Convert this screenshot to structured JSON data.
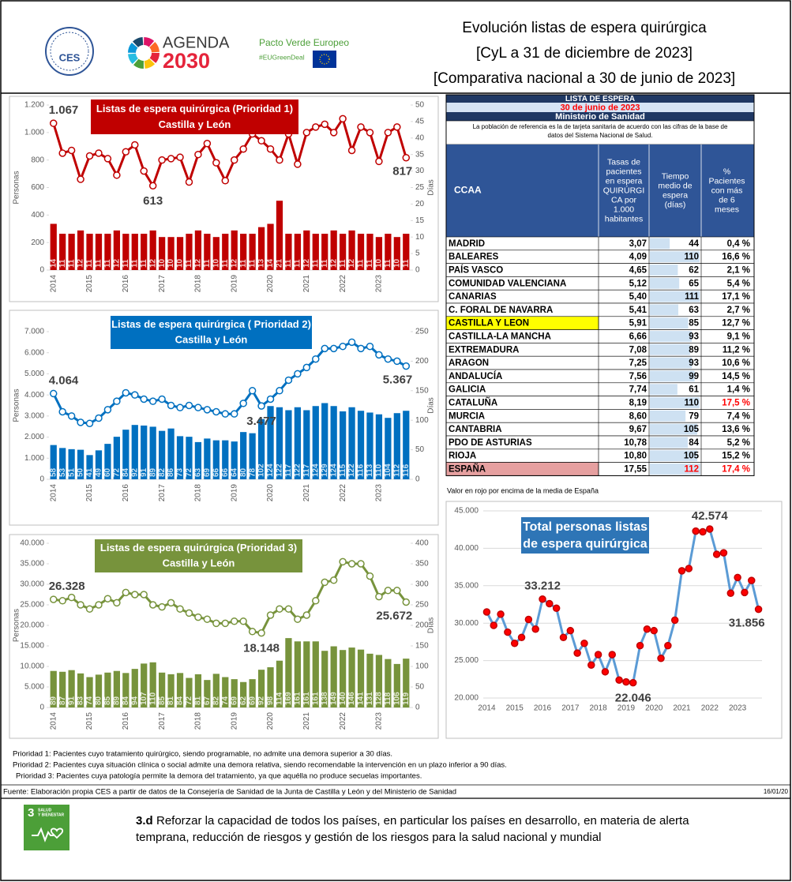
{
  "header": {
    "title": [
      "Evolución listas de espera quirúrgica",
      "[CyL a 31 de diciembre de 2023]",
      "[Comparativa nacional a 30 de junio de 2023]"
    ],
    "ces_logo": "CES",
    "agenda": "AGENDA",
    "agenda_year": "2030",
    "pacto": "Pacto Verde Europeo",
    "hashtag": "#EUGreenDeal"
  },
  "chart_data": [
    {
      "type": "combo",
      "title": [
        "Listas de espera quirúrgica (Prioridad 1)",
        "Castilla y León"
      ],
      "title_bg": "#c00000",
      "ylabel": "Personas",
      "y2label": "Días",
      "categories": [
        "2014",
        null,
        null,
        null,
        "2015",
        null,
        null,
        null,
        "2016",
        null,
        null,
        null,
        "2017",
        null,
        null,
        null,
        "2018",
        null,
        null,
        null,
        "2019",
        null,
        null,
        null,
        "2020",
        null,
        null,
        null,
        "2021",
        null,
        null,
        null,
        "2022",
        null,
        null,
        null,
        "2023",
        null,
        null,
        null
      ],
      "ylim": [
        0,
        1200
      ],
      "yticks": [
        0,
        200,
        400,
        600,
        800,
        {
          "value": 1000,
          "label": "1.000"
        },
        {
          "value": 1200,
          "label": "1.200"
        }
      ],
      "y2lim": [
        0,
        50
      ],
      "y2ticks": [
        0,
        5,
        10,
        15,
        20,
        25,
        30,
        35,
        40,
        45,
        50
      ],
      "grid": false,
      "series": [
        {
          "type": "bar",
          "axis": "y2",
          "color": "#c00000",
          "values": [
            14,
            11,
            11,
            12,
            11,
            11,
            11,
            12,
            11,
            11,
            11,
            12,
            10,
            10,
            10,
            11,
            12,
            11,
            10,
            11,
            12,
            11,
            11,
            13,
            14,
            21,
            11,
            11,
            12,
            11,
            11,
            12,
            11,
            12,
            11,
            11,
            10,
            11,
            10,
            11
          ]
        },
        {
          "type": "line",
          "color": "#c00000",
          "marker_fill": "#ffffff",
          "values": [
            1067,
            850,
            870,
            660,
            830,
            850,
            810,
            690,
            860,
            910,
            720,
            613,
            800,
            810,
            820,
            640,
            840,
            920,
            780,
            650,
            800,
            880,
            990,
            940,
            880,
            800,
            990,
            770,
            1000,
            1040,
            1060,
            1000,
            1100,
            870,
            1040,
            1000,
            790,
            1000,
            1040,
            817
          ],
          "value_labels": [
            "1.067",
            null,
            null,
            null,
            null,
            null,
            null,
            null,
            null,
            null,
            null,
            "613",
            null,
            null,
            null,
            null,
            null,
            null,
            null,
            null,
            null,
            null,
            null,
            null,
            null,
            null,
            null,
            null,
            null,
            null,
            null,
            null,
            null,
            null,
            null,
            null,
            null,
            null,
            null,
            "817"
          ]
        }
      ]
    },
    {
      "type": "combo",
      "title": [
        "Listas de espera quirúrgica ( Prioridad 2)",
        "Castilla y León"
      ],
      "title_bg": "#0070c0",
      "ylabel": "Personas",
      "y2label": "Días",
      "categories": [
        "2014",
        null,
        null,
        null,
        "2015",
        null,
        null,
        null,
        "2016",
        null,
        null,
        null,
        "2017",
        null,
        null,
        null,
        "2018",
        null,
        null,
        null,
        "2019",
        null,
        null,
        null,
        "2020",
        null,
        null,
        null,
        "2021",
        null,
        null,
        null,
        "2022",
        null,
        null,
        null,
        "2023",
        null,
        null,
        null
      ],
      "ylim": [
        0,
        7000
      ],
      "yticks": [
        0,
        {
          "value": 1000,
          "label": "1.000"
        },
        {
          "value": 2000,
          "label": "2.000"
        },
        {
          "value": 3000,
          "label": "3.000"
        },
        {
          "value": 4000,
          "label": "4.000"
        },
        {
          "value": 5000,
          "label": "5.000"
        },
        {
          "value": 6000,
          "label": "6.000"
        },
        {
          "value": 7000,
          "label": "7.000"
        }
      ],
      "y2lim": [
        0,
        250
      ],
      "y2ticks": [
        0,
        50,
        100,
        150,
        200,
        250
      ],
      "grid": false,
      "series": [
        {
          "type": "bar",
          "axis": "y2",
          "color": "#0070c0",
          "values": [
            58,
            53,
            51,
            50,
            41,
            49,
            60,
            72,
            84,
            92,
            91,
            89,
            82,
            86,
            73,
            72,
            63,
            69,
            66,
            66,
            64,
            80,
            78,
            102,
            124,
            122,
            117,
            122,
            117,
            124,
            129,
            124,
            115,
            122,
            116,
            113,
            110,
            104,
            112,
            116
          ]
        },
        {
          "type": "line",
          "color": "#0070c0",
          "marker_fill": "#ffffff",
          "values": [
            4064,
            3200,
            3000,
            2700,
            2650,
            2900,
            3300,
            3700,
            4100,
            4000,
            3800,
            3700,
            3800,
            3500,
            3400,
            3500,
            3400,
            3300,
            3200,
            3100,
            3100,
            3600,
            4200,
            3477,
            3800,
            4200,
            4700,
            5000,
            5300,
            5700,
            6200,
            6200,
            6300,
            6500,
            6200,
            6300,
            5900,
            5700,
            5600,
            5367
          ],
          "value_labels": [
            "4.064",
            null,
            null,
            null,
            null,
            null,
            null,
            null,
            null,
            null,
            null,
            null,
            null,
            null,
            null,
            null,
            null,
            null,
            null,
            null,
            null,
            null,
            null,
            "3.477",
            null,
            null,
            null,
            null,
            null,
            null,
            null,
            null,
            null,
            null,
            null,
            null,
            null,
            null,
            null,
            "5.367"
          ]
        }
      ]
    },
    {
      "type": "combo",
      "title": [
        "Listas de espera quirúrgica (Prioridad  3)",
        "Castilla y León"
      ],
      "title_bg": "#77933c",
      "ylabel": "Personas",
      "y2label": "Días",
      "categories": [
        "2014",
        null,
        null,
        null,
        "2015",
        null,
        null,
        null,
        "2016",
        null,
        null,
        null,
        "2017",
        null,
        null,
        null,
        "2018",
        null,
        null,
        null,
        "2019",
        null,
        null,
        null,
        "2020",
        null,
        null,
        null,
        "2021",
        null,
        null,
        null,
        "2022",
        null,
        null,
        null,
        "2023",
        null,
        null,
        null
      ],
      "ylim": [
        0,
        40000
      ],
      "yticks": [
        0,
        {
          "value": 5000,
          "label": "5.000"
        },
        {
          "value": 10000,
          "label": "10.000"
        },
        {
          "value": 15000,
          "label": "15.000"
        },
        {
          "value": 20000,
          "label": "20.000"
        },
        {
          "value": 25000,
          "label": "25.000"
        },
        {
          "value": 30000,
          "label": "30.000"
        },
        {
          "value": 35000,
          "label": "35.000"
        },
        {
          "value": 40000,
          "label": "40.000"
        }
      ],
      "y2lim": [
        0,
        400
      ],
      "y2ticks": [
        0,
        50,
        100,
        150,
        200,
        250,
        300,
        350,
        400
      ],
      "grid": false,
      "series": [
        {
          "type": "bar",
          "axis": "y2",
          "color": "#77933c",
          "values": [
            89,
            87,
            91,
            83,
            74,
            80,
            85,
            89,
            84,
            94,
            107,
            110,
            85,
            81,
            84,
            72,
            81,
            67,
            82,
            74,
            69,
            62,
            69,
            92,
            98,
            114,
            169,
            161,
            161,
            161,
            138,
            149,
            140,
            146,
            141,
            131,
            128,
            118,
            106,
            119
          ]
        },
        {
          "type": "line",
          "color": "#77933c",
          "marker_fill": "#ffffff",
          "values": [
            26328,
            26000,
            26800,
            25000,
            24000,
            25000,
            26500,
            25500,
            28000,
            27500,
            27500,
            25000,
            24500,
            25500,
            24000,
            23000,
            22000,
            21500,
            20500,
            20500,
            21000,
            21000,
            18500,
            18148,
            22500,
            24000,
            24000,
            21500,
            22500,
            26000,
            30500,
            31000,
            35500,
            35000,
            35000,
            32000,
            27000,
            28500,
            28500,
            25672
          ],
          "value_labels": [
            "26.328",
            null,
            null,
            null,
            null,
            null,
            null,
            null,
            null,
            null,
            null,
            null,
            null,
            null,
            null,
            null,
            null,
            null,
            null,
            null,
            null,
            null,
            null,
            "18.148",
            null,
            null,
            null,
            null,
            null,
            null,
            null,
            null,
            null,
            null,
            null,
            null,
            null,
            null,
            null,
            "25.672"
          ]
        }
      ]
    },
    {
      "type": "line",
      "title": [
        "Total personas listas",
        "de espera quirúrgica"
      ],
      "title_bg": "#2e75b6",
      "categories": [
        "2014",
        null,
        null,
        null,
        "2015",
        null,
        null,
        null,
        "2016",
        null,
        null,
        null,
        "2017",
        null,
        null,
        null,
        "2018",
        null,
        null,
        null,
        "2019",
        null,
        null,
        null,
        "2020",
        null,
        null,
        null,
        "2021",
        null,
        null,
        null,
        "2022",
        null,
        null,
        null,
        "2023",
        null,
        null,
        null
      ],
      "ylim": [
        20000,
        45000
      ],
      "yticks": [
        {
          "value": 20000,
          "label": "20.000"
        },
        {
          "value": 25000,
          "label": "25.000"
        },
        {
          "value": 30000,
          "label": "30.000"
        },
        {
          "value": 35000,
          "label": "35.000"
        },
        {
          "value": 40000,
          "label": "40.000"
        },
        {
          "value": 45000,
          "label": "45.000"
        }
      ],
      "grid": true,
      "series": [
        {
          "type": "line",
          "color": "#5b9bd5",
          "marker_fill": "#ff0000",
          "values": [
            31500,
            29700,
            31200,
            28800,
            27300,
            28100,
            30500,
            29200,
            33212,
            32600,
            32000,
            28100,
            29000,
            26000,
            27300,
            24400,
            25800,
            23500,
            25800,
            22400,
            22150,
            22046,
            27000,
            29200,
            29000,
            25300,
            27000,
            30400,
            37000,
            37300,
            42300,
            42200,
            42574,
            39200,
            39400,
            34000,
            36100,
            34100,
            35700,
            31856
          ],
          "value_labels": [
            null,
            null,
            null,
            null,
            null,
            null,
            null,
            null,
            "33.212",
            null,
            null,
            null,
            null,
            null,
            null,
            null,
            null,
            null,
            null,
            null,
            null,
            "22.046",
            null,
            null,
            null,
            null,
            null,
            null,
            null,
            null,
            null,
            null,
            "42.574",
            null,
            null,
            null,
            null,
            null,
            null,
            "31.856"
          ]
        }
      ]
    }
  ],
  "table": {
    "title": [
      "LISTA DE ESPERA",
      "30 de junio de 2023",
      "Ministerio de Sanidad"
    ],
    "note": [
      "La población de referencia es la de tarjeta sanitaria de acuerdo con las cifras de la base de",
      "datos del Sistema Nacional de Salud."
    ],
    "columns": [
      [
        "CCAA"
      ],
      [
        "Tasas de",
        "pacientes",
        "en espera",
        "QUIRÚRGI",
        "CA por",
        "1.000",
        "habitantes"
      ],
      [
        "Tiempo",
        "medio de",
        "espera",
        "(días)"
      ],
      [
        "%",
        "Pacientes",
        "con más",
        "de 6",
        "meses"
      ]
    ],
    "rows": [
      [
        "MADRID",
        "3,07",
        44,
        "0,4 %"
      ],
      [
        "BALEARES",
        "4,09",
        110,
        "16,6 %"
      ],
      [
        "PAÍS VASCO",
        "4,65",
        62,
        "2,1 %"
      ],
      [
        "COMUNIDAD VALENCIANA",
        "5,12",
        65,
        "5,4 %"
      ],
      [
        "CANARIAS",
        "5,40",
        111,
        "17,1 %"
      ],
      [
        "C. FORAL DE NAVARRA",
        "5,41",
        63,
        "2,7 %"
      ],
      [
        "CASTILLA Y LEON",
        "5,91",
        85,
        "12,7 %"
      ],
      [
        "CASTILLA-LA MANCHA",
        "6,66",
        93,
        "9,1 %"
      ],
      [
        "EXTREMADURA",
        "7,08",
        89,
        "11,2 %"
      ],
      [
        "ARAGON",
        "7,25",
        93,
        "10,6 %"
      ],
      [
        "ANDALUCÍA",
        "7,56",
        99,
        "14,5 %"
      ],
      [
        "GALICIA",
        "7,74",
        61,
        "1,4 %"
      ],
      [
        "CATALUÑA",
        "8,19",
        110,
        "17,5 %"
      ],
      [
        "MURCIA",
        "8,60",
        79,
        "7,4 %"
      ],
      [
        "CANTABRIA",
        "9,67",
        105,
        "13,6 %"
      ],
      [
        "PDO DE ASTURIAS",
        "10,78",
        84,
        "5,2 %"
      ],
      [
        "RIOJA",
        "10,80",
        105,
        "15,2 %"
      ],
      [
        "ESPAÑA",
        "17,55",
        112,
        "17,4 %"
      ]
    ],
    "footnote": "Valor en rojo por encima de la media de España"
  },
  "notes": [
    "Prioridad 1:  Pacientes cuyo tratamiento quirúrgico, siendo programable, no admite una demora superior a 30 días.",
    "Prioridad 2:  Pacientes cuya situación clínica o social admite una demora relativa, siendo recomendable la intervención en un plazo inferior a 90 días.",
    "Prioridad 3:  Pacientes cuya patología permite la demora del tratamiento, ya que aquélla no produce secuelas importantes."
  ],
  "source": "Fuente: Elaboración propia CES a partir de datos  de la Consejería de Sanidad de la Junta de Castilla y León y del Ministerio de Sanidad",
  "date": "16/01/20",
  "sdg": {
    "number": "3",
    "name": [
      "SALUD",
      "Y BIENESTAR"
    ],
    "target": "3.d",
    "text": [
      "Reforzar la capacidad de todos los países, en particular los países en desarrollo, en materia de alerta",
      "temprana, reducción de riesgos y gestión de los riesgos para la salud nacional y mundial"
    ]
  }
}
